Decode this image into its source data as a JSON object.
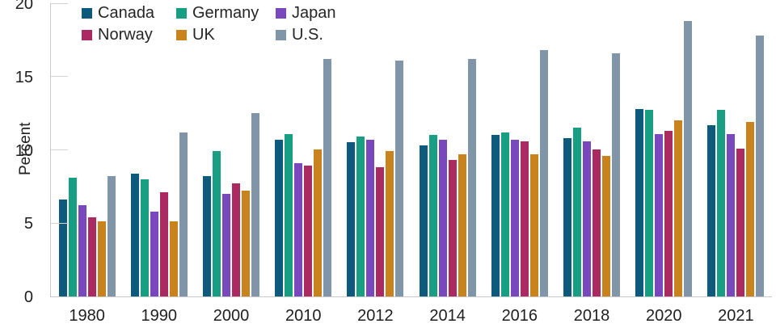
{
  "chart_data": {
    "type": "bar",
    "title": "",
    "xlabel": "",
    "ylabel": "Percent",
    "ylim": [
      0,
      20
    ],
    "yticks": [
      0,
      5,
      10,
      15,
      20
    ],
    "legend_position": "top-left",
    "grid": "inner-ticks-only",
    "categories": [
      "1980",
      "1990",
      "2000",
      "2010",
      "2012",
      "2014",
      "2016",
      "2018",
      "2020",
      "2021"
    ],
    "series": [
      {
        "name": "Canada",
        "color": "#0e5a7d",
        "values": [
          6.6,
          8.4,
          8.2,
          10.7,
          10.5,
          10.3,
          11.0,
          10.8,
          12.8,
          11.7
        ]
      },
      {
        "name": "Germany",
        "color": "#189e82",
        "values": [
          8.1,
          8.0,
          9.9,
          11.1,
          10.9,
          11.0,
          11.2,
          11.5,
          12.7,
          12.7
        ]
      },
      {
        "name": "Japan",
        "color": "#7848bc",
        "values": [
          6.2,
          5.8,
          7.0,
          9.1,
          10.7,
          10.7,
          10.7,
          10.6,
          11.1,
          11.1
        ]
      },
      {
        "name": "Norway",
        "color": "#ab2a62",
        "values": [
          5.4,
          7.1,
          7.7,
          8.9,
          8.8,
          9.3,
          10.6,
          10.0,
          11.3,
          10.1
        ]
      },
      {
        "name": "UK",
        "color": "#c9831d",
        "values": [
          5.1,
          5.1,
          7.2,
          10.0,
          9.9,
          9.7,
          9.7,
          9.6,
          12.0,
          11.9
        ]
      },
      {
        "name": "U.S.",
        "color": "#8195a8",
        "values": [
          8.2,
          11.2,
          12.5,
          16.2,
          16.1,
          16.2,
          16.8,
          16.6,
          18.8,
          17.8
        ]
      }
    ],
    "colors": {
      "axis": "#c9c9c9",
      "tick": "#d2d2d2",
      "text": "#1f1f1f"
    }
  }
}
